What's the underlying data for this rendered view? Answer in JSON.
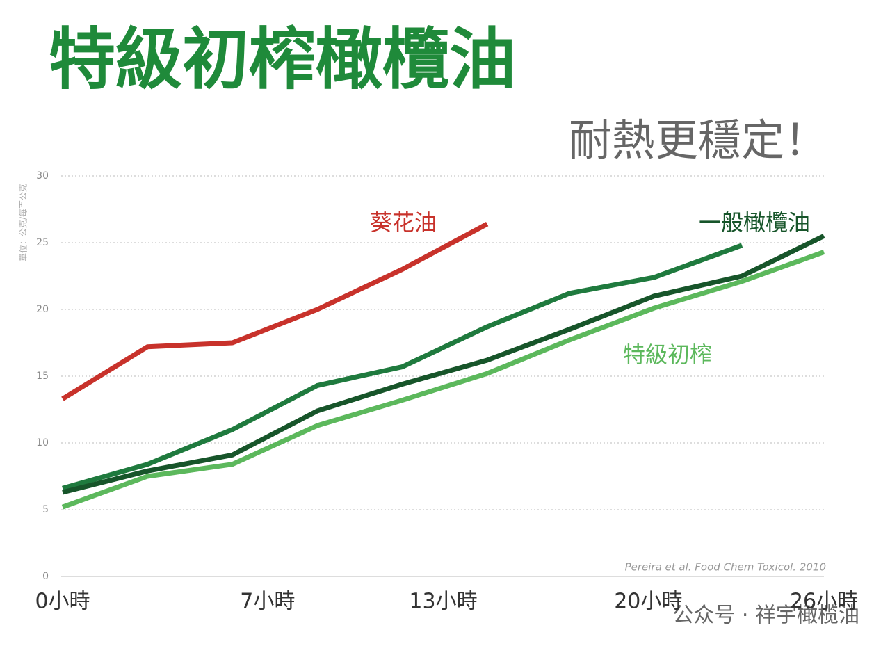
{
  "chart_data": {
    "type": "line",
    "title": "特級初榨橄欖油",
    "subtitle": "耐熱更穩定！",
    "y_label": "單位：公克/每百公克",
    "source": "Pereira et al. Food Chem Toxicol. 2010",
    "watermark": "公众号 · 祥宇橄榄油",
    "x": [
      0,
      2.9,
      5.8,
      8.7,
      11.6,
      14.5,
      17.3,
      20.2,
      23.2,
      26
    ],
    "xlim": [
      0,
      26
    ],
    "xticks": [
      {
        "value": 0,
        "label": "0小時"
      },
      {
        "value": 7,
        "label": "7小時"
      },
      {
        "value": 13,
        "label": "13小時"
      },
      {
        "value": 20,
        "label": "20小時"
      },
      {
        "value": 26,
        "label": "26小時"
      }
    ],
    "ylim": [
      0,
      30
    ],
    "yticks": [
      0,
      5,
      10,
      15,
      20,
      25,
      30
    ],
    "grid": true,
    "series": [
      {
        "name": "葵花油",
        "color": "#c8322b",
        "values": [
          13.3,
          17.2,
          17.5,
          20.0,
          23.0,
          26.4,
          null,
          null,
          null,
          null
        ]
      },
      {
        "color": "#1f7a3e",
        "values": [
          6.6,
          8.4,
          11.0,
          14.3,
          15.7,
          18.7,
          21.2,
          22.4,
          24.8,
          null
        ]
      },
      {
        "name": "一般橄欖油",
        "color": "#17552a",
        "values": [
          6.3,
          7.9,
          9.1,
          12.4,
          14.4,
          16.2,
          18.5,
          21.0,
          22.5,
          25.5
        ]
      },
      {
        "name": "特級初榨",
        "color": "#5cb85c",
        "values": [
          5.2,
          7.5,
          8.4,
          11.3,
          13.2,
          15.2,
          17.7,
          20.1,
          22.1,
          24.3
        ]
      }
    ]
  }
}
